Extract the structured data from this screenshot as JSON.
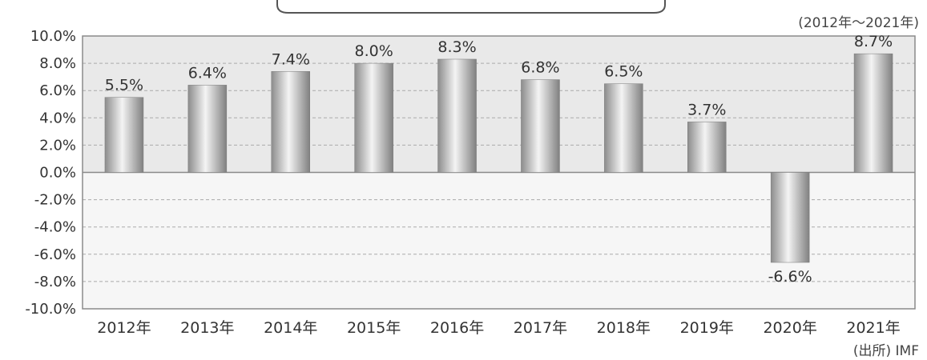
{
  "chart_data": {
    "type": "bar",
    "categories": [
      "2012年",
      "2013年",
      "2014年",
      "2015年",
      "2016年",
      "2017年",
      "2018年",
      "2019年",
      "2020年",
      "2021年"
    ],
    "values": [
      5.5,
      6.4,
      7.4,
      8.0,
      8.3,
      6.8,
      6.5,
      3.7,
      -6.6,
      8.7
    ],
    "data_labels": [
      "5.5%",
      "6.4%",
      "7.4%",
      "8.0%",
      "8.3%",
      "6.8%",
      "6.5%",
      "3.7%",
      "-6.6%",
      "8.7%"
    ],
    "ylim": [
      -10,
      10
    ],
    "yticks": [
      10,
      8,
      6,
      4,
      2,
      0,
      -2,
      -4,
      -6,
      -8,
      -10
    ],
    "ytick_labels": [
      "10.0%",
      "8.0%",
      "6.0%",
      "4.0%",
      "2.0%",
      "0.0%",
      "-2.0%",
      "-4.0%",
      "-6.0%",
      "-8.0%",
      "-10.0%"
    ],
    "grid": true,
    "period_note": "(2012年〜2021年)",
    "source_note": "(出所) IMF",
    "colors": {
      "plot_bg": "#eeeeee",
      "bar_light": "#f2f2f2",
      "bar_dark": "#888888",
      "grid": "#aaaaaa",
      "axis": "#8a8a8a"
    }
  }
}
